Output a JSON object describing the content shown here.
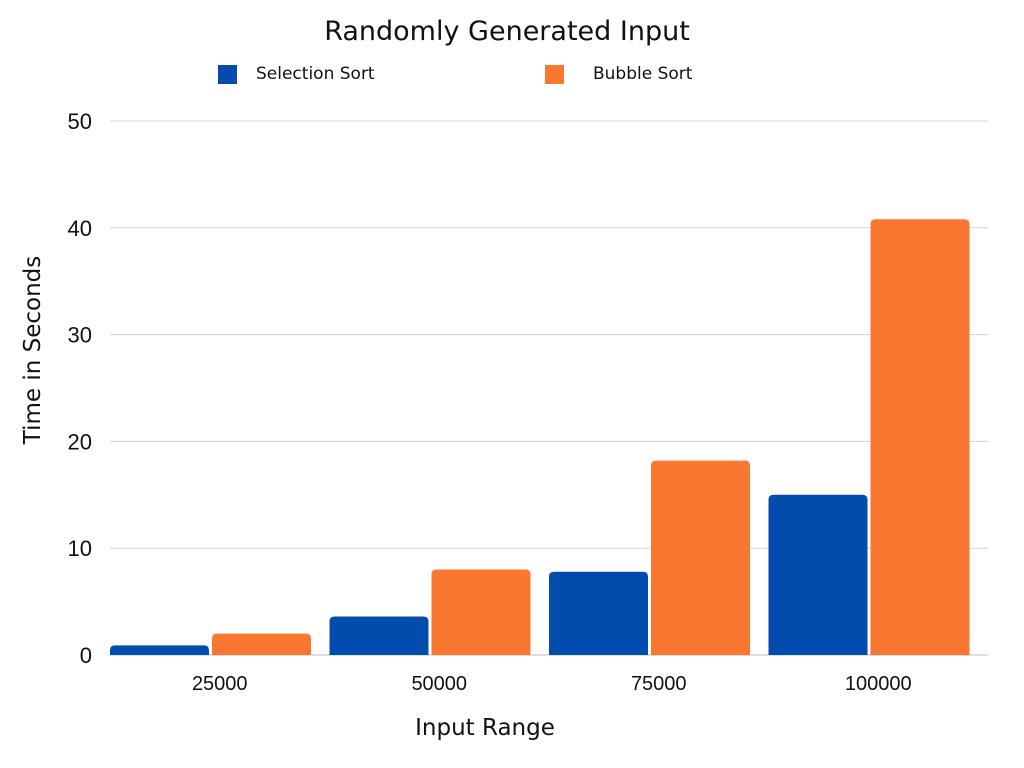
{
  "chart_data": {
    "type": "bar",
    "title": "Randomly Generated Input",
    "xlabel": "Input Range",
    "ylabel": "Time in Seconds",
    "categories": [
      "25000",
      "50000",
      "75000",
      "100000"
    ],
    "series": [
      {
        "name": "Selection Sort",
        "color": "#034CAE",
        "values": [
          0.9,
          3.6,
          7.8,
          15.0
        ]
      },
      {
        "name": "Bubble Sort",
        "color": "#FA7731",
        "values": [
          2.0,
          8.0,
          18.2,
          40.8
        ]
      }
    ],
    "ylim": [
      0,
      50
    ],
    "yticks": [
      0,
      10,
      20,
      30,
      40,
      50
    ],
    "grid": true,
    "legend_position": "top"
  }
}
